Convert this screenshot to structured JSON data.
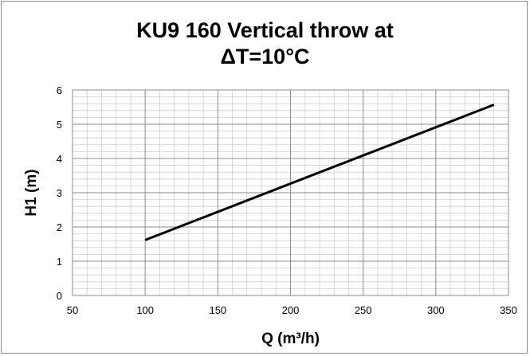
{
  "chart_data": {
    "type": "line",
    "title_line1": "KU9 160 Vertical throw at",
    "title_line2": "ΔT=10°C",
    "xlabel": "Q (m³/h)",
    "ylabel": "H1 (m)",
    "xlim": [
      50,
      350
    ],
    "ylim": [
      0,
      6
    ],
    "x_ticks": [
      "50",
      "100",
      "150",
      "200",
      "250",
      "300",
      "350"
    ],
    "y_ticks": [
      "0",
      "1",
      "2",
      "3",
      "4",
      "5",
      "6"
    ],
    "grid": true,
    "legend": "none",
    "series": [
      {
        "x": [
          100,
          340
        ],
        "values": [
          1.62,
          5.57
        ],
        "color": "#000000"
      }
    ]
  }
}
